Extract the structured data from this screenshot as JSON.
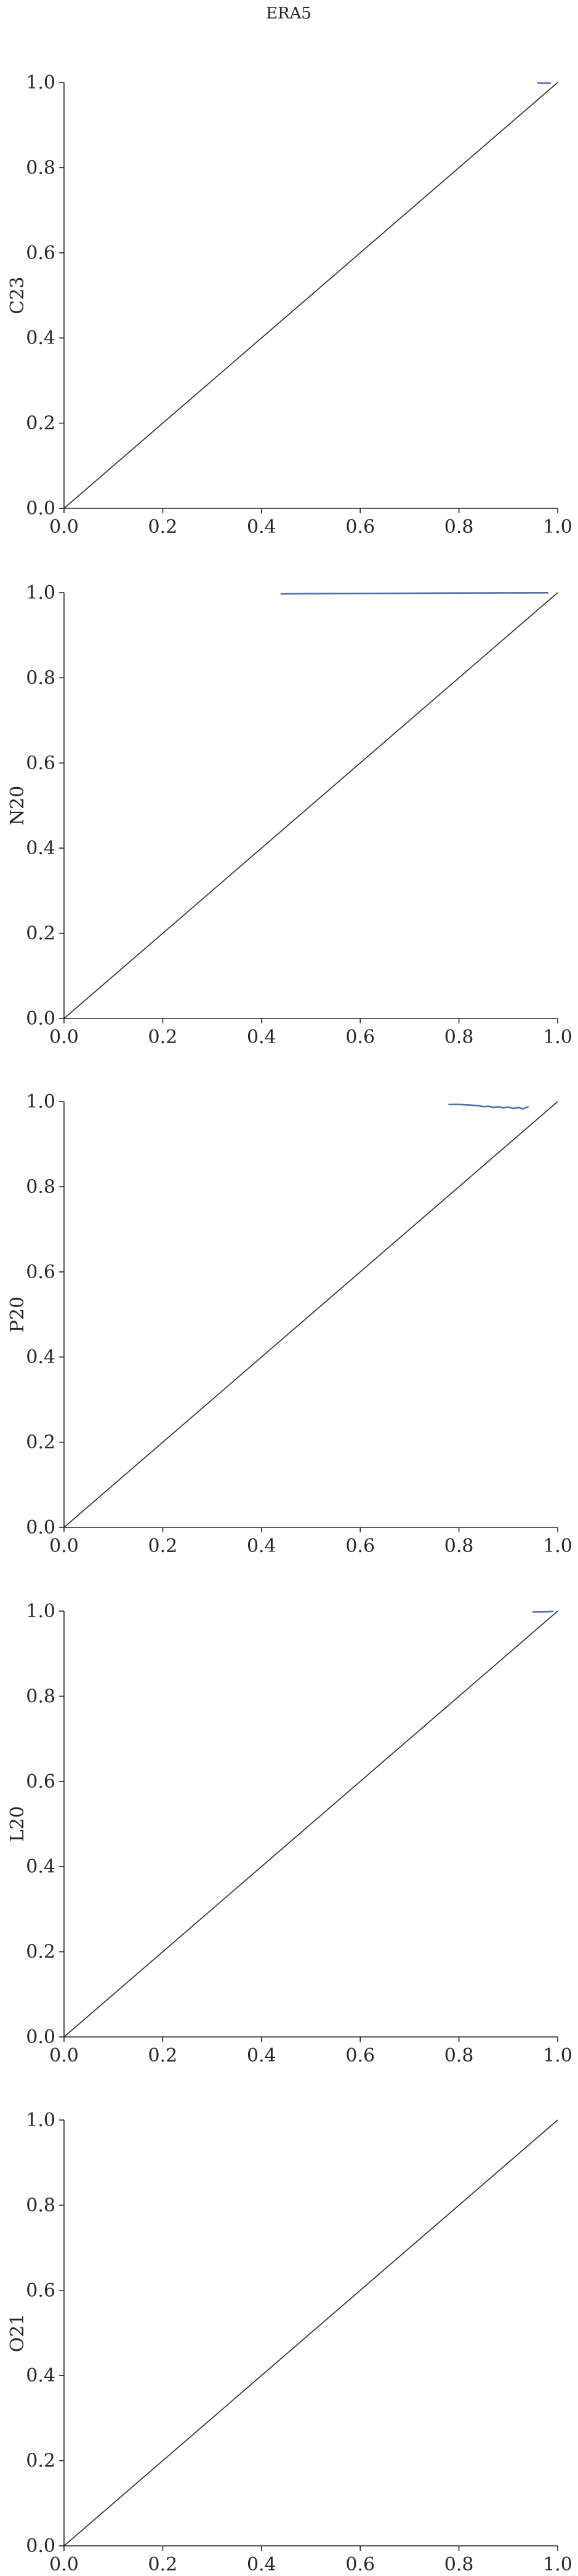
{
  "figure": {
    "title": "ERA5"
  },
  "chart_data": [
    {
      "type": "line",
      "ylabel": "C23",
      "xlim": [
        0,
        1
      ],
      "ylim": [
        0,
        1
      ],
      "xticks": [
        "0.0",
        "0.2",
        "0.4",
        "0.6",
        "0.8",
        "1.0"
      ],
      "yticks": [
        "0.0",
        "0.2",
        "0.4",
        "0.6",
        "0.8",
        "1.0"
      ],
      "reference_line": {
        "x": [
          0,
          1
        ],
        "y": [
          0,
          1
        ],
        "color": "#262626"
      },
      "series": [
        {
          "color": "#4c72b0",
          "x": [
            0.96,
            0.975,
            0.985
          ],
          "y": [
            0.999,
            0.9985,
            0.999
          ]
        }
      ]
    },
    {
      "type": "line",
      "ylabel": "N20",
      "xlim": [
        0,
        1
      ],
      "ylim": [
        0,
        1
      ],
      "xticks": [
        "0.0",
        "0.2",
        "0.4",
        "0.6",
        "0.8",
        "1.0"
      ],
      "yticks": [
        "0.0",
        "0.2",
        "0.4",
        "0.6",
        "0.8",
        "1.0"
      ],
      "reference_line": {
        "x": [
          0,
          1
        ],
        "y": [
          0,
          1
        ],
        "color": "#262626"
      },
      "series": [
        {
          "color": "#4c72b0",
          "x": [
            0.44,
            0.5,
            0.6,
            0.7,
            0.8,
            0.9,
            0.98
          ],
          "y": [
            0.997,
            0.9975,
            0.998,
            0.9985,
            0.999,
            0.9993,
            0.9995
          ]
        }
      ]
    },
    {
      "type": "line",
      "ylabel": "P20",
      "xlim": [
        0,
        1
      ],
      "ylim": [
        0,
        1
      ],
      "xticks": [
        "0.0",
        "0.2",
        "0.4",
        "0.6",
        "0.8",
        "1.0"
      ],
      "yticks": [
        "0.0",
        "0.2",
        "0.4",
        "0.6",
        "0.8",
        "1.0"
      ],
      "reference_line": {
        "x": [
          0,
          1
        ],
        "y": [
          0,
          1
        ],
        "color": "#262626"
      },
      "series": [
        {
          "color": "#4c72b0",
          "x": [
            0.78,
            0.8,
            0.82,
            0.84,
            0.85,
            0.86,
            0.87,
            0.88,
            0.89,
            0.9,
            0.91,
            0.92,
            0.93,
            0.94
          ],
          "y": [
            0.993,
            0.993,
            0.992,
            0.99,
            0.988,
            0.989,
            0.986,
            0.988,
            0.985,
            0.987,
            0.984,
            0.986,
            0.983,
            0.988
          ]
        }
      ]
    },
    {
      "type": "line",
      "ylabel": "L20",
      "xlim": [
        0,
        1
      ],
      "ylim": [
        0,
        1
      ],
      "xticks": [
        "0.0",
        "0.2",
        "0.4",
        "0.6",
        "0.8",
        "1.0"
      ],
      "yticks": [
        "0.0",
        "0.2",
        "0.4",
        "0.6",
        "0.8",
        "1.0"
      ],
      "reference_line": {
        "x": [
          0,
          1
        ],
        "y": [
          0,
          1
        ],
        "color": "#262626"
      },
      "series": [
        {
          "color": "#4c72b0",
          "x": [
            0.95,
            0.97,
            0.99
          ],
          "y": [
            0.998,
            0.998,
            0.999
          ]
        }
      ]
    },
    {
      "type": "line",
      "ylabel": "O21",
      "xlim": [
        0,
        1
      ],
      "ylim": [
        0,
        1
      ],
      "xticks": [
        "0.0",
        "0.2",
        "0.4",
        "0.6",
        "0.8",
        "1.0"
      ],
      "yticks": [
        "0.0",
        "0.2",
        "0.4",
        "0.6",
        "0.8",
        "1.0"
      ],
      "reference_line": {
        "x": [
          0,
          1
        ],
        "y": [
          0,
          1
        ],
        "color": "#262626"
      },
      "series": []
    }
  ]
}
